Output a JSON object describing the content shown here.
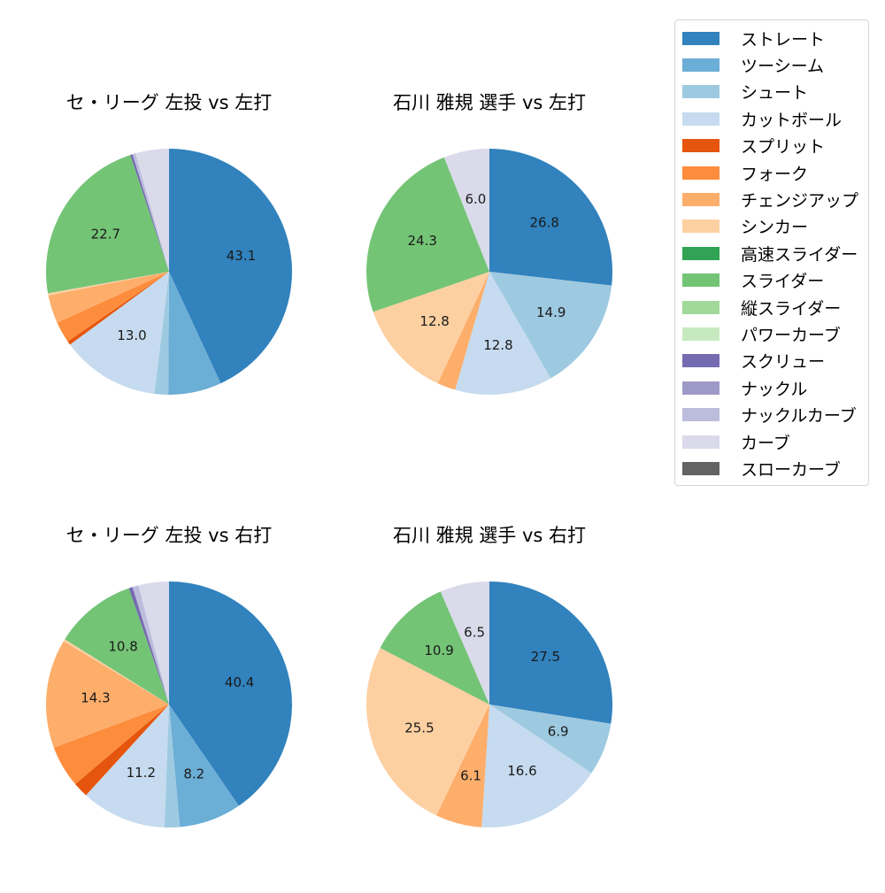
{
  "legend": {
    "items": [
      {
        "label": "ストレート",
        "color": "#3182bd"
      },
      {
        "label": "ツーシーム",
        "color": "#6baed6"
      },
      {
        "label": "シュート",
        "color": "#9ecae1"
      },
      {
        "label": "カットボール",
        "color": "#c6dbef"
      },
      {
        "label": "スプリット",
        "color": "#e6550d"
      },
      {
        "label": "フォーク",
        "color": "#fd8d3c"
      },
      {
        "label": "チェンジアップ",
        "color": "#fdae6b"
      },
      {
        "label": "シンカー",
        "color": "#fdd0a2"
      },
      {
        "label": "高速スライダー",
        "color": "#31a354"
      },
      {
        "label": "スライダー",
        "color": "#74c476"
      },
      {
        "label": "縦スライダー",
        "color": "#a1d99b"
      },
      {
        "label": "パワーカーブ",
        "color": "#c7e9c0"
      },
      {
        "label": "スクリュー",
        "color": "#756bb1"
      },
      {
        "label": "ナックル",
        "color": "#9e9ac8"
      },
      {
        "label": "ナックルカーブ",
        "color": "#bcbddc"
      },
      {
        "label": "カーブ",
        "color": "#dadaeb"
      },
      {
        "label": "スローカーブ",
        "color": "#636363"
      }
    ]
  },
  "chart_data": [
    {
      "type": "pie",
      "title": "セ・リーグ 左投 vs 左打",
      "start_angle": 90,
      "direction": "clockwise",
      "slices": [
        {
          "label": "ストレート",
          "value": 43.1,
          "show_label": true
        },
        {
          "label": "ツーシーム",
          "value": 7.0,
          "show_label": false
        },
        {
          "label": "シュート",
          "value": 1.8,
          "show_label": false
        },
        {
          "label": "カットボール",
          "value": 13.0,
          "show_label": true
        },
        {
          "label": "スプリット",
          "value": 0.5,
          "show_label": false
        },
        {
          "label": "フォーク",
          "value": 2.8,
          "show_label": false
        },
        {
          "label": "チェンジアップ",
          "value": 3.7,
          "show_label": false
        },
        {
          "label": "シンカー",
          "value": 0.3,
          "show_label": false
        },
        {
          "label": "スライダー",
          "value": 22.7,
          "show_label": true
        },
        {
          "label": "スクリュー",
          "value": 0.3,
          "show_label": false
        },
        {
          "label": "ナックルカーブ",
          "value": 0.4,
          "show_label": false
        },
        {
          "label": "カーブ",
          "value": 4.4,
          "show_label": false
        }
      ]
    },
    {
      "type": "pie",
      "title": "石川 雅規 選手 vs 左打",
      "start_angle": 90,
      "direction": "clockwise",
      "slices": [
        {
          "label": "ストレート",
          "value": 26.8,
          "show_label": true
        },
        {
          "label": "シュート",
          "value": 14.9,
          "show_label": true
        },
        {
          "label": "カットボール",
          "value": 12.8,
          "show_label": true
        },
        {
          "label": "チェンジアップ",
          "value": 2.4,
          "show_label": false
        },
        {
          "label": "シンカー",
          "value": 12.8,
          "show_label": true
        },
        {
          "label": "スライダー",
          "value": 24.3,
          "show_label": true
        },
        {
          "label": "カーブ",
          "value": 6.0,
          "show_label": true
        }
      ]
    },
    {
      "type": "pie",
      "title": "セ・リーグ 左投 vs 右打",
      "start_angle": 90,
      "direction": "clockwise",
      "slices": [
        {
          "label": "ストレート",
          "value": 40.4,
          "show_label": true
        },
        {
          "label": "ツーシーム",
          "value": 8.2,
          "show_label": true
        },
        {
          "label": "シュート",
          "value": 2.0,
          "show_label": false
        },
        {
          "label": "カットボール",
          "value": 11.2,
          "show_label": true
        },
        {
          "label": "スプリット",
          "value": 2.0,
          "show_label": false
        },
        {
          "label": "フォーク",
          "value": 5.5,
          "show_label": false
        },
        {
          "label": "チェンジアップ",
          "value": 14.3,
          "show_label": true
        },
        {
          "label": "シンカー",
          "value": 0.3,
          "show_label": false
        },
        {
          "label": "スライダー",
          "value": 10.8,
          "show_label": true
        },
        {
          "label": "スクリュー",
          "value": 0.5,
          "show_label": false
        },
        {
          "label": "ナックルカーブ",
          "value": 0.8,
          "show_label": false
        },
        {
          "label": "カーブ",
          "value": 4.0,
          "show_label": false
        }
      ]
    },
    {
      "type": "pie",
      "title": "石川 雅規 選手 vs 右打",
      "start_angle": 90,
      "direction": "clockwise",
      "slices": [
        {
          "label": "ストレート",
          "value": 27.5,
          "show_label": true
        },
        {
          "label": "シュート",
          "value": 6.9,
          "show_label": true
        },
        {
          "label": "カットボール",
          "value": 16.6,
          "show_label": true
        },
        {
          "label": "チェンジアップ",
          "value": 6.1,
          "show_label": true
        },
        {
          "label": "シンカー",
          "value": 25.5,
          "show_label": true
        },
        {
          "label": "スライダー",
          "value": 10.9,
          "show_label": true
        },
        {
          "label": "カーブ",
          "value": 6.5,
          "show_label": true
        }
      ]
    }
  ]
}
